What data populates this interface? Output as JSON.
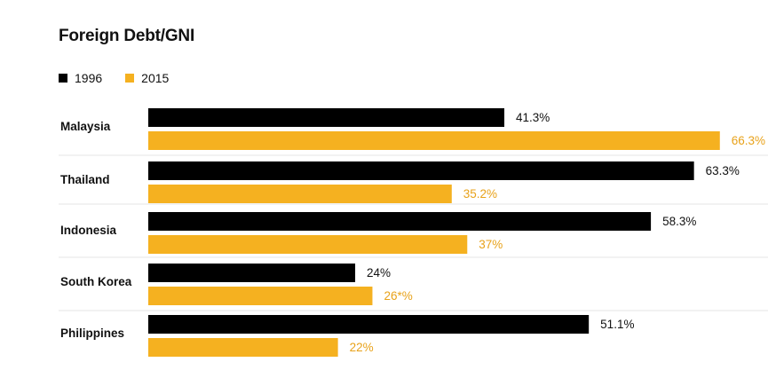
{
  "chart_data": {
    "type": "bar",
    "orientation": "horizontal",
    "title": "Foreign Debt/GNI",
    "categories": [
      "Malaysia",
      "Thailand",
      "Indonesia",
      "South Korea",
      "Philippines"
    ],
    "series": [
      {
        "name": "1996",
        "color": "#000000",
        "values": [
          41.3,
          63.3,
          58.3,
          24,
          51.1
        ],
        "labels": [
          "41.3%",
          "63.3%",
          "58.3%",
          "24%",
          "51.1%"
        ]
      },
      {
        "name": "2015",
        "color": "#f5b120",
        "values": [
          66.3,
          35.2,
          37,
          26,
          22
        ],
        "labels": [
          "66.3%",
          "35.2%",
          "37%",
          "26*%",
          "22%"
        ]
      }
    ],
    "legend_position": "top-left",
    "grid": false
  }
}
